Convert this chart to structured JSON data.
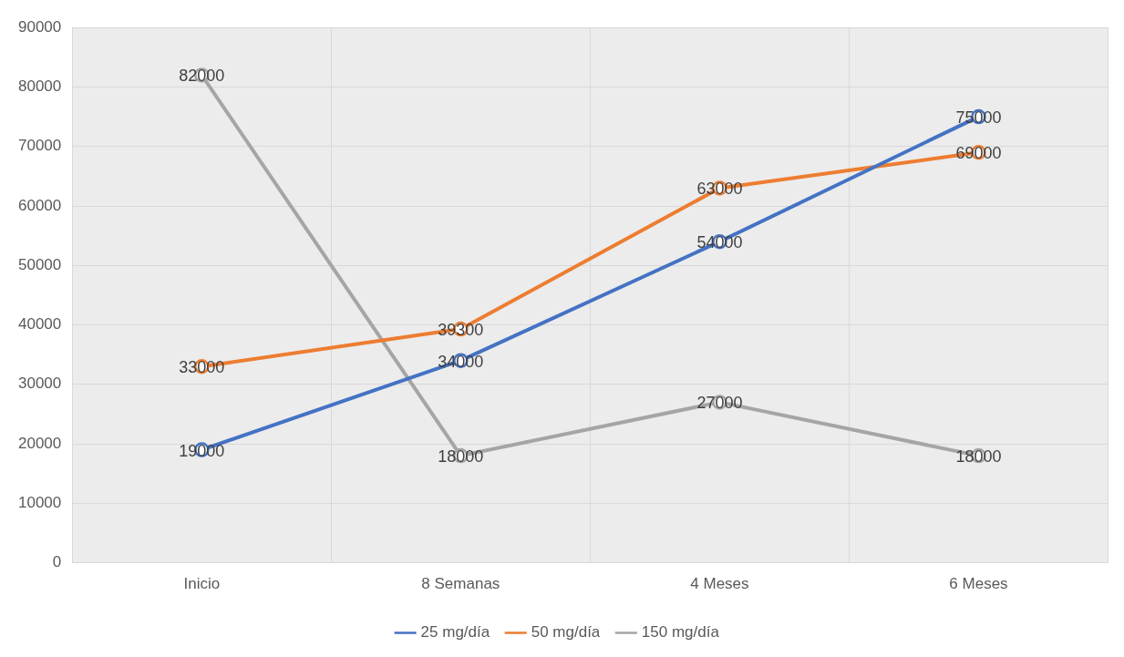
{
  "chart_data": {
    "type": "line",
    "categories": [
      "Inicio",
      "8 Semanas",
      "4 Meses",
      "6 Meses"
    ],
    "series": [
      {
        "name": "25 mg/día",
        "color": "#4472c4",
        "values": [
          19000,
          34000,
          54000,
          75000
        ]
      },
      {
        "name": "50 mg/día",
        "color": "#ed7d31",
        "values": [
          33000,
          39300,
          63000,
          69000
        ]
      },
      {
        "name": "150 mg/día",
        "color": "#a5a5a5",
        "values": [
          82000,
          18000,
          27000,
          18000
        ]
      }
    ],
    "ylim": [
      0,
      90000
    ],
    "yticks": [
      0,
      10000,
      20000,
      30000,
      40000,
      50000,
      60000,
      70000,
      80000,
      90000
    ],
    "grid": true,
    "legend": "bottom",
    "marker": "circle",
    "line_style": "solid",
    "data_labels": true
  }
}
